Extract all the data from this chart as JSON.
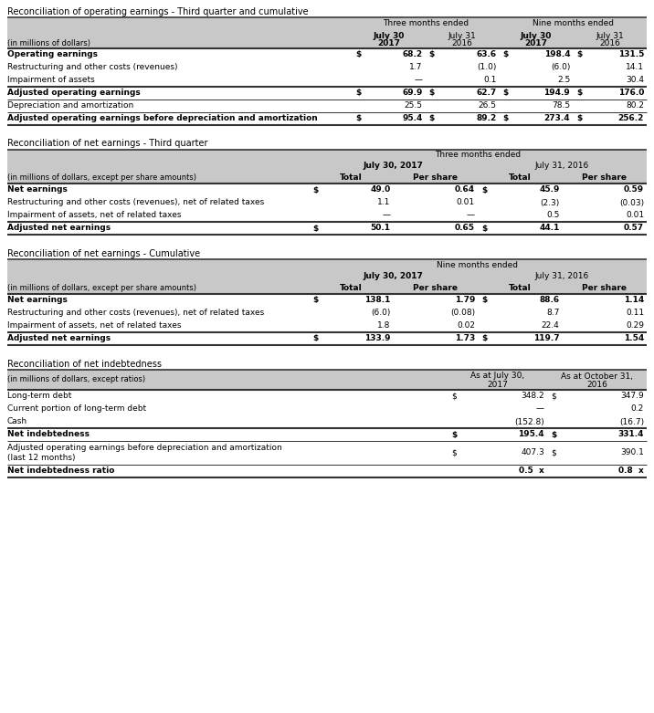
{
  "bg_color": "#ffffff",
  "gray_header": "#c8c8c8",
  "black": "#000000",
  "table1": {
    "section_title": "Reconciliation of operating earnings - Third quarter and cumulative",
    "header_row1": [
      "Three months ended",
      "Nine months ended"
    ],
    "header_row2_cols": [
      "July 30",
      "July 31",
      "July 30",
      "July 31"
    ],
    "header_row3_cols": [
      "2017",
      "2016",
      "2017",
      "2016"
    ],
    "header_row3_bold": [
      true,
      false,
      true,
      false
    ],
    "label_col_header": "(in millions of dollars)",
    "rows": [
      {
        "label": "Operating earnings",
        "bold": true,
        "dollar": [
          true,
          true,
          true,
          true
        ],
        "vals": [
          "68.2",
          "63.6",
          "198.4",
          "131.5"
        ]
      },
      {
        "label": "Restructuring and other costs (revenues)",
        "bold": false,
        "dollar": [
          false,
          false,
          false,
          false
        ],
        "vals": [
          "1.7",
          "(1.0)",
          "(6.0)",
          "14.1"
        ]
      },
      {
        "label": "Impairment of assets",
        "bold": false,
        "dollar": [
          false,
          false,
          false,
          false
        ],
        "vals": [
          "—",
          "0.1",
          "2.5",
          "30.4"
        ]
      },
      {
        "label": "Adjusted operating earnings",
        "bold": true,
        "dollar": [
          true,
          true,
          true,
          true
        ],
        "vals": [
          "69.9",
          "62.7",
          "194.9",
          "176.0"
        ]
      },
      {
        "label": "Depreciation and amortization",
        "bold": false,
        "dollar": [
          false,
          false,
          false,
          false
        ],
        "vals": [
          "25.5",
          "26.5",
          "78.5",
          "80.2"
        ]
      },
      {
        "label": "Adjusted operating earnings before depreciation and amortization",
        "bold": true,
        "dollar": [
          true,
          true,
          true,
          true
        ],
        "vals": [
          "95.4",
          "89.2",
          "273.4",
          "256.2"
        ]
      }
    ],
    "lines_before": [
      0,
      3,
      4,
      5
    ],
    "lines_after": [
      5
    ]
  },
  "table2": {
    "section_title": "Reconciliation of net earnings - Third quarter",
    "header_row1": "Three months ended",
    "header_row2": [
      "July 30, 2017",
      "July 31, 2016"
    ],
    "header_row2_bold": [
      true,
      false
    ],
    "header_row3": [
      "Total",
      "Per share",
      "Total",
      "Per share"
    ],
    "label_col_header": "(in millions of dollars, except per share amounts)",
    "rows": [
      {
        "label": "Net earnings",
        "bold": true,
        "dollar": [
          true,
          true,
          true,
          true
        ],
        "vals": [
          "49.0",
          "0.64",
          "45.9",
          "0.59"
        ]
      },
      {
        "label": "Restructuring and other costs (revenues), net of related taxes",
        "bold": false,
        "dollar": [
          false,
          false,
          false,
          false
        ],
        "vals": [
          "1.1",
          "0.01",
          "(2.3)",
          "(0.03)"
        ]
      },
      {
        "label": "Impairment of assets, net of related taxes",
        "bold": false,
        "dollar": [
          false,
          false,
          false,
          false
        ],
        "vals": [
          "—",
          "—",
          "0.5",
          "0.01"
        ]
      },
      {
        "label": "Adjusted net earnings",
        "bold": true,
        "dollar": [
          true,
          true,
          true,
          true
        ],
        "vals": [
          "50.1",
          "0.65",
          "44.1",
          "0.57"
        ]
      }
    ],
    "lines_before": [
      0,
      3
    ],
    "lines_after": [
      3
    ]
  },
  "table3": {
    "section_title": "Reconciliation of net earnings - Cumulative",
    "header_row1": "Nine months ended",
    "header_row2": [
      "July 30, 2017",
      "July 31, 2016"
    ],
    "header_row2_bold": [
      true,
      false
    ],
    "header_row3": [
      "Total",
      "Per share",
      "Total",
      "Per share"
    ],
    "label_col_header": "(in millions of dollars, except per share amounts)",
    "rows": [
      {
        "label": "Net earnings",
        "bold": true,
        "dollar": [
          true,
          true,
          true,
          true
        ],
        "vals": [
          "138.1",
          "1.79",
          "88.6",
          "1.14"
        ]
      },
      {
        "label": "Restructuring and other costs (revenues), net of related taxes",
        "bold": false,
        "dollar": [
          false,
          false,
          false,
          false
        ],
        "vals": [
          "(6.0)",
          "(0.08)",
          "8.7",
          "0.11"
        ]
      },
      {
        "label": "Impairment of assets, net of related taxes",
        "bold": false,
        "dollar": [
          false,
          false,
          false,
          false
        ],
        "vals": [
          "1.8",
          "0.02",
          "22.4",
          "0.29"
        ]
      },
      {
        "label": "Adjusted net earnings",
        "bold": true,
        "dollar": [
          true,
          true,
          true,
          true
        ],
        "vals": [
          "133.9",
          "1.73",
          "119.7",
          "1.54"
        ]
      }
    ],
    "lines_before": [
      0,
      3
    ],
    "lines_after": [
      3
    ]
  },
  "table4": {
    "section_title": "Reconciliation of net indebtedness",
    "header_row1": [
      "As at July 30,\n2017",
      "As at October 31,\n2016"
    ],
    "label_col_header": "(in millions of dollars, except ratios)",
    "rows": [
      {
        "label": "Long-term debt",
        "bold": false,
        "dollar": [
          true,
          true
        ],
        "vals": [
          "348.2",
          "347.9"
        ]
      },
      {
        "label": "Current portion of long-term debt",
        "bold": false,
        "dollar": [
          false,
          false
        ],
        "vals": [
          "—",
          "0.2"
        ]
      },
      {
        "label": "Cash",
        "bold": false,
        "dollar": [
          false,
          false
        ],
        "vals": [
          "(152.8)",
          "(16.7)"
        ]
      },
      {
        "label": "Net indebtedness",
        "bold": true,
        "dollar": [
          true,
          true
        ],
        "vals": [
          "195.4",
          "331.4"
        ]
      },
      {
        "label": "Adjusted operating earnings before depreciation and amortization\n(last 12 months)",
        "bold": false,
        "dollar": [
          true,
          true
        ],
        "vals": [
          "407.3",
          "390.1"
        ]
      },
      {
        "label": "Net indebtedness ratio",
        "bold": true,
        "dollar": [
          false,
          false
        ],
        "vals": [
          "0.5  x",
          "0.8  x"
        ]
      }
    ],
    "lines_before": [
      0,
      3,
      4,
      5
    ],
    "lines_after": [
      5
    ]
  }
}
